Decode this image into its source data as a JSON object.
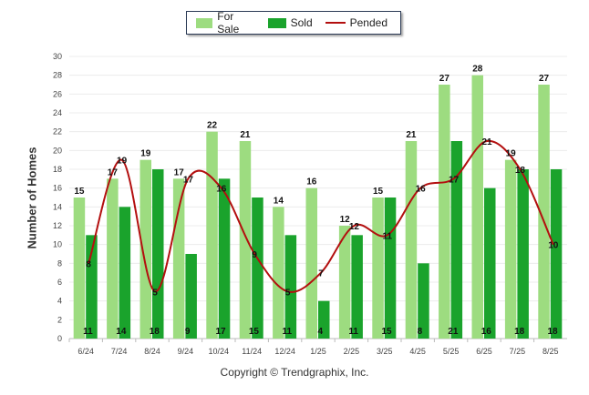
{
  "colors": {
    "for_sale": "#9ddc80",
    "sold": "#1aa32c",
    "pended": "#b30f0f",
    "grid": "#ececec"
  },
  "legend": {
    "for_sale": "For Sale",
    "sold": "Sold",
    "pended": "Pended"
  },
  "copyright": "Copyright © Trendgraphix, Inc.",
  "chart_data": {
    "type": "bar",
    "ylabel": "Number of Homes",
    "xlabel": "",
    "title": "",
    "ylim": [
      0,
      30
    ],
    "yticks": [
      0,
      2,
      4,
      6,
      8,
      10,
      12,
      14,
      16,
      18,
      20,
      22,
      24,
      26,
      28,
      30
    ],
    "grid": true,
    "legend_position": "top-center",
    "categories": [
      "6/24",
      "7/24",
      "8/24",
      "9/24",
      "10/24",
      "11/24",
      "12/24",
      "1/25",
      "2/25",
      "3/25",
      "4/25",
      "5/25",
      "6/25",
      "7/25",
      "8/25"
    ],
    "series": [
      {
        "name": "For Sale",
        "type": "bar",
        "values": [
          15,
          17,
          19,
          17,
          22,
          21,
          14,
          16,
          12,
          15,
          21,
          27,
          28,
          19,
          27
        ]
      },
      {
        "name": "Sold",
        "type": "bar",
        "values": [
          11,
          14,
          18,
          9,
          17,
          15,
          11,
          4,
          11,
          15,
          8,
          21,
          16,
          18,
          18
        ]
      },
      {
        "name": "Pended",
        "type": "line",
        "values": [
          8,
          19,
          5,
          17,
          16,
          9,
          5,
          7,
          12,
          11,
          16,
          17,
          21,
          18,
          10
        ]
      }
    ]
  }
}
